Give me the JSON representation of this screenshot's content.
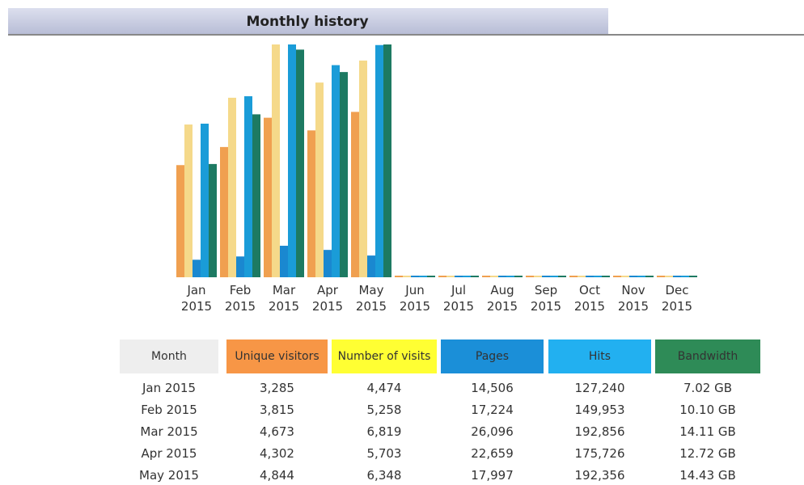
{
  "chart_data": {
    "type": "bar",
    "title": "Monthly history",
    "categories": [
      "Jan 2015",
      "Feb 2015",
      "Mar 2015",
      "Apr 2015",
      "May 2015",
      "Jun 2015",
      "Jul 2015",
      "Aug 2015",
      "Sep 2015",
      "Oct 2015",
      "Nov 2015",
      "Dec 2015"
    ],
    "series": [
      {
        "name": "Unique visitors",
        "color": "#f0a050",
        "values": [
          3285,
          3815,
          4673,
          4302,
          4844,
          0,
          0,
          0,
          0,
          0,
          0,
          0
        ],
        "value_labels": [
          "3,285",
          "3,815",
          "4,673",
          "4,302",
          "4,844",
          null,
          null,
          null,
          null,
          null,
          null,
          null
        ]
      },
      {
        "name": "Number of visits",
        "color": "#f5d98a",
        "values": [
          4474,
          5258,
          6819,
          5703,
          6348,
          0,
          0,
          0,
          0,
          0,
          0,
          0
        ],
        "value_labels": [
          "4,474",
          "5,258",
          "6,819",
          "5,703",
          "6,348",
          null,
          null,
          null,
          null,
          null,
          null,
          null
        ]
      },
      {
        "name": "Pages",
        "color": "#1a88d0",
        "values": [
          14506,
          17224,
          26096,
          22659,
          17997,
          0,
          0,
          0,
          0,
          0,
          0,
          0
        ],
        "value_labels": [
          "14,506",
          "17,224",
          "26,096",
          "22,659",
          "17,997",
          null,
          null,
          null,
          null,
          null,
          null,
          null
        ]
      },
      {
        "name": "Hits",
        "color": "#1a9cd8",
        "values": [
          127240,
          149953,
          192856,
          175726,
          192356,
          0,
          0,
          0,
          0,
          0,
          0,
          0
        ],
        "value_labels": [
          "127,240",
          "149,953",
          "192,856",
          "175,726",
          "192,356",
          null,
          null,
          null,
          null,
          null,
          null,
          null
        ]
      },
      {
        "name": "Bandwidth",
        "color": "#1d7a62",
        "values": [
          7.02,
          10.1,
          14.11,
          12.72,
          14.43,
          0,
          0,
          0,
          0,
          0,
          0,
          0
        ],
        "value_labels": [
          "7.02 GB",
          "10.10 GB",
          "14.11 GB",
          "12.72 GB",
          "14.43 GB",
          null,
          null,
          null,
          null,
          null,
          null,
          null
        ]
      }
    ],
    "table_header": "Month",
    "header_colors": [
      "#eeeeee",
      "#f79646",
      "#ffff33",
      "#1b8fd8",
      "#22b0f0",
      "#2e8b57"
    ]
  }
}
